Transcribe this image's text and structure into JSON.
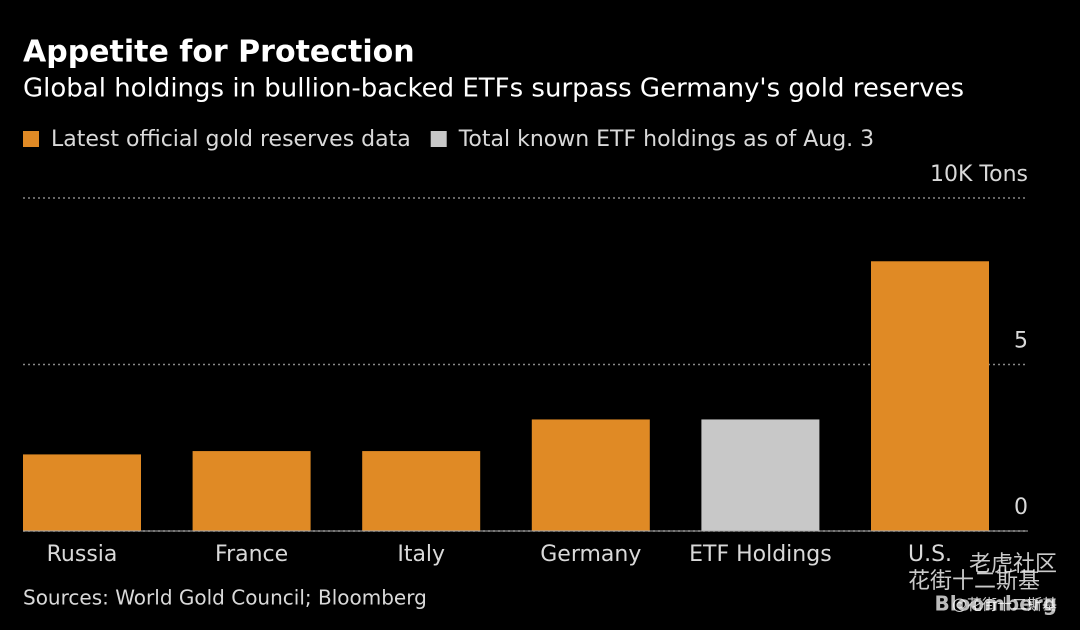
{
  "chart_data": {
    "type": "bar",
    "title": "Appetite for Protection",
    "subtitle": "Global holdings in bullion-backed ETFs surpass Germany's gold reserves",
    "legend": [
      {
        "label": "Latest official gold reserves data",
        "color": "#e08a25"
      },
      {
        "label": "Total known ETF holdings as of Aug. 3",
        "color": "#c8c8c8"
      }
    ],
    "categories": [
      "Russia",
      "France",
      "Italy",
      "Germany",
      "ETF Holdings",
      "U.S."
    ],
    "values": [
      2.3,
      2.4,
      2.4,
      3.35,
      3.35,
      8.1
    ],
    "colors": [
      "#e08a25",
      "#e08a25",
      "#e08a25",
      "#e08a25",
      "#c8c8c8",
      "#e08a25"
    ],
    "ylim": [
      0,
      10
    ],
    "yticks": [
      0,
      5,
      {
        "value": 10,
        "label": "10K Tons"
      }
    ],
    "grid": true,
    "source": "Sources: World Gold Council; Bloomberg",
    "logo": "Bloomberg",
    "watermark": [
      "老虎社区",
      "花街十二斯基",
      "@花街十二斯基"
    ]
  }
}
